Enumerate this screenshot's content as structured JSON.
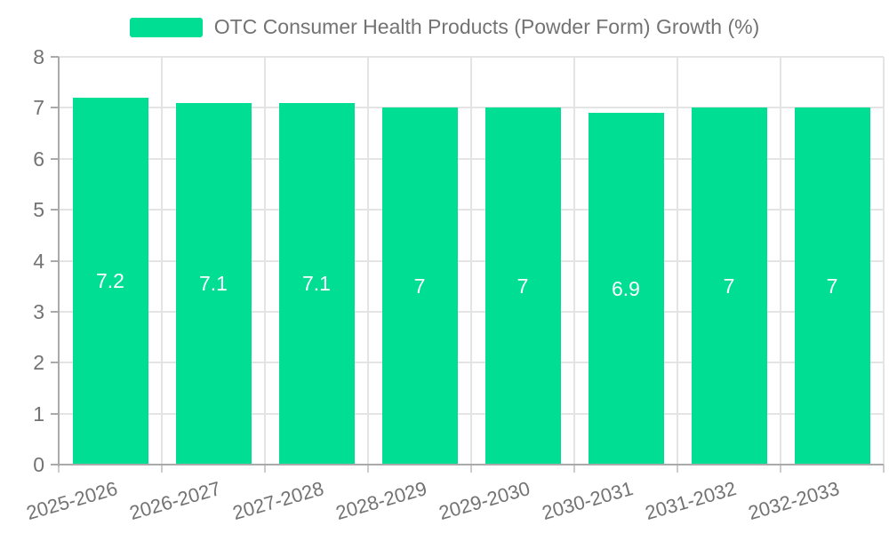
{
  "legend": {
    "label": "OTC Consumer Health Products (Powder Form) Growth (%)",
    "swatch_color": "#00de94"
  },
  "chart_data": {
    "type": "bar",
    "title": "OTC Consumer Health Products (Powder Form) Growth (%)",
    "categories": [
      "2025-2026",
      "2026-2027",
      "2027-2028",
      "2028-2029",
      "2029-2030",
      "2030-2031",
      "2031-2032",
      "2032-2033"
    ],
    "values": [
      7.2,
      7.1,
      7.1,
      7,
      7,
      6.9,
      7,
      7
    ],
    "value_labels": [
      "7.2",
      "7.1",
      "7.1",
      "7",
      "7",
      "6.9",
      "7",
      "7"
    ],
    "xlabel": "",
    "ylabel": "",
    "ylim": [
      0,
      8
    ],
    "yticks": [
      0,
      1,
      2,
      3,
      4,
      5,
      6,
      7,
      8
    ],
    "grid": true,
    "legend_position": "top-center",
    "x_label_rotation_deg": -16,
    "colors": {
      "bar": "#00de94",
      "bar_value_text": "#ffffff",
      "axis_text": "#737373",
      "legend_text": "#737373",
      "axis_line": "#aaaaaa",
      "gridline": "#e4e4e4",
      "x_tick": "#cccccc",
      "background": "#ffffff"
    }
  }
}
